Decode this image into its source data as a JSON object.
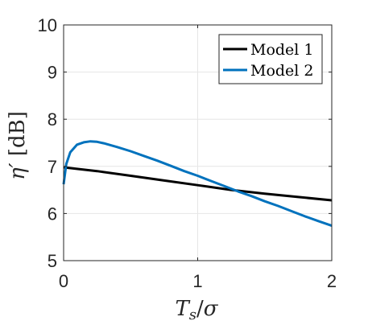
{
  "chart_data": {
    "type": "line",
    "xlabel": "T_s/σ",
    "ylabel": "η′ [dB]",
    "xlim": [
      0,
      2
    ],
    "ylim": [
      5,
      10
    ],
    "xticks": [
      0,
      1,
      2
    ],
    "yticks": [
      5,
      6,
      7,
      8,
      9,
      10
    ],
    "xtick_labels": [
      "0",
      "1",
      "2"
    ],
    "ytick_labels": [
      "5",
      "6",
      "7",
      "8",
      "9",
      "10"
    ],
    "grid": true,
    "legend_position": "top-right",
    "series": [
      {
        "name": "Model 1",
        "color": "#000000",
        "x": [
          0,
          0.25,
          0.5,
          0.75,
          1.0,
          1.25,
          1.5,
          1.75,
          2.0
        ],
        "y": [
          6.98,
          6.9,
          6.8,
          6.7,
          6.6,
          6.5,
          6.42,
          6.35,
          6.28
        ]
      },
      {
        "name": "Model 2",
        "color": "#0072BD",
        "x": [
          0,
          0.02,
          0.05,
          0.1,
          0.15,
          0.2,
          0.25,
          0.3,
          0.4,
          0.5,
          0.6,
          0.7,
          0.8,
          0.9,
          1.0,
          1.1,
          1.2,
          1.3,
          1.4,
          1.5,
          1.6,
          1.7,
          1.8,
          1.9,
          2.0
        ],
        "y": [
          6.62,
          7.05,
          7.3,
          7.46,
          7.51,
          7.53,
          7.52,
          7.49,
          7.41,
          7.32,
          7.22,
          7.12,
          7.01,
          6.9,
          6.8,
          6.69,
          6.58,
          6.47,
          6.37,
          6.26,
          6.16,
          6.05,
          5.94,
          5.84,
          5.74
        ]
      }
    ]
  }
}
